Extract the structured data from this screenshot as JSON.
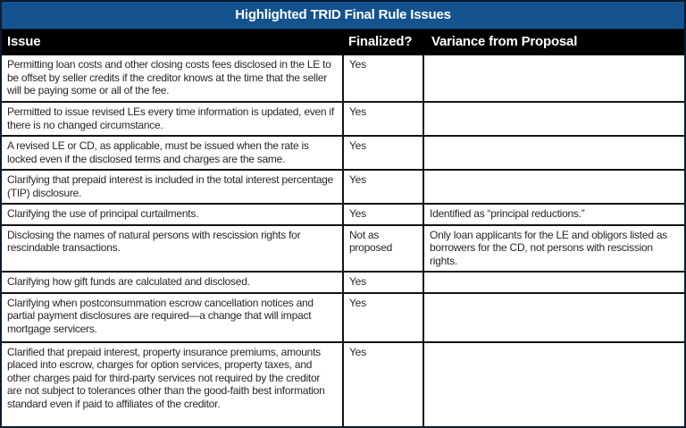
{
  "title": "Highlighted TRID Final Rule Issues",
  "colors": {
    "title_bar_bg": "#14538f",
    "title_bar_border": "#0a2544",
    "header_bg": "#000000",
    "header_text": "#ffffff",
    "body_text": "#272727",
    "grid_line": "#131313"
  },
  "table": {
    "columns": [
      {
        "label": "Issue"
      },
      {
        "label": "Finalized?"
      },
      {
        "label": "Variance from Proposal"
      }
    ],
    "rows": [
      {
        "issue": "Permitting loan costs and other closing costs fees disclosed in the LE to be offset by seller credits if the creditor knows at the time that the seller will be paying some or all of the fee.",
        "finalized": "Yes",
        "variance": ""
      },
      {
        "issue": "Permitted to issue revised LEs every time information is updated, even if there is no changed circumstance.",
        "finalized": "Yes",
        "variance": ""
      },
      {
        "issue": "A revised LE or CD, as applicable, must be issued when the rate is locked even if the disclosed terms and charges are the same.",
        "finalized": "Yes",
        "variance": ""
      },
      {
        "issue": "Clarifying that prepaid interest is included in the total interest percentage (TIP) disclosure.",
        "finalized": "Yes",
        "variance": ""
      },
      {
        "issue": "Clarifying the use of principal curtailments.",
        "finalized": "Yes",
        "variance": "Identified as “principal reductions.”"
      },
      {
        "issue": "Disclosing the names of natural persons with rescission rights for rescindable transactions.",
        "finalized": "Not as proposed",
        "variance": "Only loan applicants for the LE and obligors listed as borrowers for the CD, not persons with rescission rights."
      },
      {
        "issue": "Clarifying how gift funds are calculated and disclosed.",
        "finalized": "Yes",
        "variance": ""
      },
      {
        "issue": "Clarifying when postconsummation escrow cancellation notices and partial payment disclosures are required—a change that will impact mortgage servicers.",
        "finalized": "Yes",
        "variance": ""
      },
      {
        "issue": "Clarified that prepaid interest, property insurance premiums, amounts placed into escrow, charges for option services, property taxes, and other charges paid for third-party services not required by the creditor are not subject to tolerances other than the good-faith best information standard even if paid to affiliates of the creditor.",
        "finalized": "Yes",
        "variance": ""
      }
    ]
  }
}
